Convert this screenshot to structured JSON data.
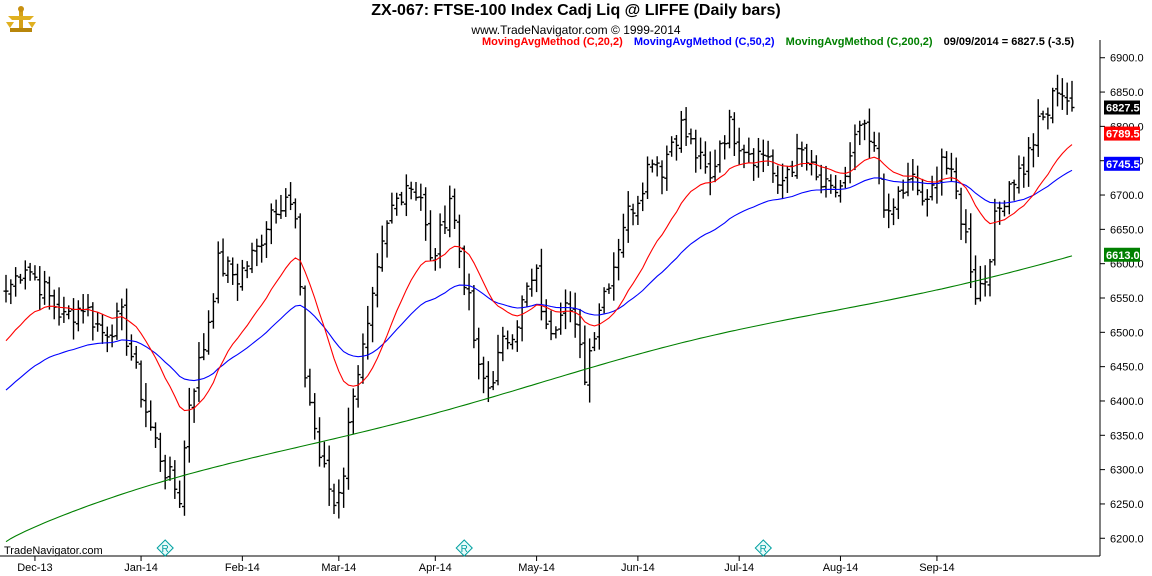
{
  "header": {
    "title": "ZX-067:  FTSE-100 Index Cadj Liq @ LIFFE  (Daily bars)",
    "copyright": "www.TradeNavigator.com © 1999-2014",
    "legend": [
      {
        "label": "MovingAvgMethod (C,20,2)",
        "color": "#ff0000"
      },
      {
        "label": "MovingAvgMethod (C,50,2)",
        "color": "#0000ff"
      },
      {
        "label": "MovingAvgMethod (C,200,2)",
        "color": "#008000"
      }
    ],
    "last_quote": "09/09/2014 = 6827.5 (-3.5)"
  },
  "footer": {
    "brand": "TradeNavigator.com"
  },
  "chart_data": {
    "type": "bar",
    "ylim": [
      6180,
      6920
    ],
    "y_ticks": [
      6200,
      6250,
      6300,
      6350,
      6400,
      6450,
      6500,
      6550,
      6600,
      6650,
      6700,
      6750,
      6800,
      6850,
      6900
    ],
    "y_tick_labels": [
      "6200.0",
      "6250.0",
      "6300.0",
      "6350.0",
      "6400.0",
      "6450.0",
      "6500.0",
      "6550.0",
      "6600.0",
      "6650.0",
      "6700.0",
      "6750.0",
      "6800.0",
      "6850.0",
      "6900.0"
    ],
    "x_month_labels": [
      "Dec-13",
      "Jan-14",
      "Feb-14",
      "Mar-14",
      "Apr-14",
      "May-14",
      "Jun-14",
      "Jul-14",
      "Aug-14",
      "Sep-14"
    ],
    "price_tags": [
      {
        "label": "6827.5",
        "value": 6827.5,
        "bg": "#000000",
        "fg": "#ffffff"
      },
      {
        "label": "6789.5",
        "value": 6789.5,
        "bg": "#ff0000",
        "fg": "#ffffff"
      },
      {
        "label": "6745.5",
        "value": 6745.5,
        "bg": "#0000ff",
        "fg": "#ffffff"
      },
      {
        "label": "6613.0",
        "value": 6613.0,
        "bg": "#008000",
        "fg": "#ffffff"
      }
    ],
    "rollover_markers": [
      "R",
      "R",
      "R"
    ],
    "close_anchors": [
      [
        0,
        6560
      ],
      [
        4,
        6600
      ],
      [
        8,
        6560
      ],
      [
        12,
        6520
      ],
      [
        16,
        6540
      ],
      [
        20,
        6500
      ],
      [
        24,
        6520
      ],
      [
        27,
        6440
      ],
      [
        30,
        6360
      ],
      [
        33,
        6300
      ],
      [
        36,
        6260
      ],
      [
        38,
        6400
      ],
      [
        41,
        6480
      ],
      [
        44,
        6600
      ],
      [
        48,
        6580
      ],
      [
        52,
        6620
      ],
      [
        55,
        6680
      ],
      [
        58,
        6700
      ],
      [
        60,
        6660
      ],
      [
        62,
        6440
      ],
      [
        65,
        6320
      ],
      [
        68,
        6250
      ],
      [
        70,
        6300
      ],
      [
        72,
        6420
      ],
      [
        75,
        6500
      ],
      [
        78,
        6620
      ],
      [
        80,
        6680
      ],
      [
        83,
        6720
      ],
      [
        86,
        6700
      ],
      [
        88,
        6600
      ],
      [
        90,
        6640
      ],
      [
        92,
        6700
      ],
      [
        94,
        6620
      ],
      [
        96,
        6540
      ],
      [
        98,
        6440
      ],
      [
        100,
        6420
      ],
      [
        103,
        6480
      ],
      [
        106,
        6520
      ],
      [
        108,
        6560
      ],
      [
        110,
        6580
      ],
      [
        112,
        6500
      ],
      [
        114,
        6520
      ],
      [
        116,
        6560
      ],
      [
        118,
        6500
      ],
      [
        120,
        6440
      ],
      [
        123,
        6540
      ],
      [
        126,
        6600
      ],
      [
        128,
        6660
      ],
      [
        131,
        6700
      ],
      [
        134,
        6760
      ],
      [
        136,
        6740
      ],
      [
        138,
        6780
      ],
      [
        140,
        6800
      ],
      [
        143,
        6760
      ],
      [
        146,
        6720
      ],
      [
        148,
        6780
      ],
      [
        150,
        6800
      ],
      [
        152,
        6780
      ],
      [
        155,
        6760
      ],
      [
        158,
        6760
      ],
      [
        160,
        6700
      ],
      [
        162,
        6740
      ],
      [
        165,
        6760
      ],
      [
        168,
        6720
      ],
      [
        171,
        6700
      ],
      [
        174,
        6720
      ],
      [
        177,
        6800
      ],
      [
        180,
        6760
      ],
      [
        183,
        6660
      ],
      [
        185,
        6700
      ],
      [
        188,
        6720
      ],
      [
        191,
        6680
      ],
      [
        194,
        6760
      ],
      [
        197,
        6700
      ],
      [
        199,
        6640
      ],
      [
        201,
        6560
      ],
      [
        203,
        6580
      ],
      [
        205,
        6660
      ],
      [
        208,
        6720
      ],
      [
        211,
        6740
      ],
      [
        214,
        6800
      ],
      [
        216,
        6820
      ],
      [
        218,
        6860
      ],
      [
        220,
        6840
      ],
      [
        221,
        6827.5
      ]
    ]
  }
}
